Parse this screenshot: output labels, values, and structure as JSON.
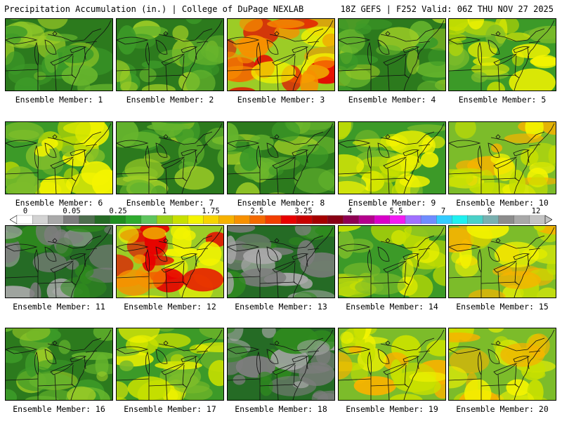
{
  "header": {
    "left": "Precipitation Accumulation (in.) | College of DuPage NEXLAB",
    "right": "18Z GEFS | F252 Valid: 06Z THU NOV 27 2025"
  },
  "panels": [
    {
      "label": "Ensemble Member: 1",
      "scheme": "green"
    },
    {
      "label": "Ensemble Member: 2",
      "scheme": "green"
    },
    {
      "label": "Ensemble Member: 3",
      "scheme": "wet"
    },
    {
      "label": "Ensemble Member: 4",
      "scheme": "green"
    },
    {
      "label": "Ensemble Member: 5",
      "scheme": "mixed"
    },
    {
      "label": "Ensemble Member: 6",
      "scheme": "mixed"
    },
    {
      "label": "Ensemble Member: 7",
      "scheme": "green"
    },
    {
      "label": "Ensemble Member: 8",
      "scheme": "green"
    },
    {
      "label": "Ensemble Member: 9",
      "scheme": "mixed"
    },
    {
      "label": "Ensemble Member: 10",
      "scheme": "yellow"
    },
    {
      "label": "Ensemble Member: 11",
      "scheme": "dry"
    },
    {
      "label": "Ensemble Member: 12",
      "scheme": "wet"
    },
    {
      "label": "Ensemble Member: 13",
      "scheme": "dry"
    },
    {
      "label": "Ensemble Member: 14",
      "scheme": "mixed"
    },
    {
      "label": "Ensemble Member: 15",
      "scheme": "yellow"
    },
    {
      "label": "Ensemble Member: 16",
      "scheme": "green"
    },
    {
      "label": "Ensemble Member: 17",
      "scheme": "mixed"
    },
    {
      "label": "Ensemble Member: 18",
      "scheme": "dry"
    },
    {
      "label": "Ensemble Member: 19",
      "scheme": "yellow"
    },
    {
      "label": "Ensemble Member: 20",
      "scheme": "yellow"
    }
  ],
  "colorbar": {
    "labels": [
      "0",
      "0.05",
      "0.25",
      "1",
      "1.75",
      "2.5",
      "3.25",
      "4",
      "5.5",
      "7",
      "9",
      "12"
    ],
    "colors": [
      "#ffffff",
      "#d3d3d3",
      "#a9a9a9",
      "#7d7d7d",
      "#4e6e4e",
      "#256b25",
      "#1f8f1f",
      "#2eab2e",
      "#5ec45e",
      "#9ad11a",
      "#c8e000",
      "#f4f400",
      "#f7d400",
      "#f7b200",
      "#f79000",
      "#f46a00",
      "#f23f00",
      "#e80000",
      "#c80000",
      "#a50000",
      "#880014",
      "#8e0052",
      "#b4008c",
      "#d800c8",
      "#f21cf2",
      "#a070ff",
      "#6f8cff",
      "#33ccff",
      "#1ff0f0",
      "#4ad0c8",
      "#7ab0b0",
      "#8c8c8c",
      "#a8a8a8",
      "#c4c4c4"
    ]
  },
  "schemes": {
    "green": [
      "#2c7a1d",
      "#3c9a28",
      "#66b52d",
      "#9ccc26"
    ],
    "dry": [
      "#256b25",
      "#2f8a1e",
      "#7d7d7d",
      "#a9a9a9"
    ],
    "mixed": [
      "#3c9a28",
      "#7cbc2a",
      "#c8e000",
      "#f4f400"
    ],
    "yellow": [
      "#7cbc2a",
      "#c8e000",
      "#f4f400",
      "#f7b200"
    ],
    "wet": [
      "#9ccc26",
      "#f4f400",
      "#f79000",
      "#e80000"
    ]
  }
}
